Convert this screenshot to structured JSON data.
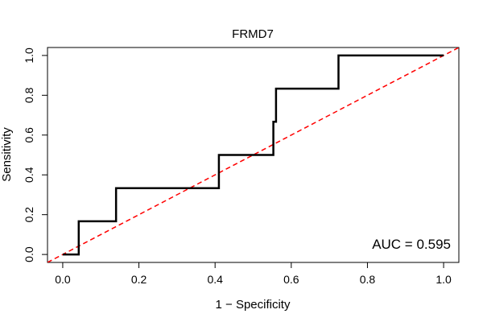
{
  "chart_data": {
    "type": "line",
    "title": "FRMD7",
    "xlabel": "1 − Specificity",
    "ylabel": "Sensitivity",
    "xlim": [
      -0.04,
      1.04
    ],
    "ylim": [
      -0.04,
      1.04
    ],
    "x_ticks": [
      0.0,
      0.2,
      0.4,
      0.6,
      0.8,
      1.0
    ],
    "x_tick_labels": [
      "0.0",
      "0.2",
      "0.4",
      "0.6",
      "0.8",
      "1.0"
    ],
    "y_ticks": [
      0.0,
      0.2,
      0.4,
      0.6,
      0.8,
      1.0
    ],
    "y_tick_labels": [
      "0.0",
      "0.2",
      "0.4",
      "0.6",
      "0.8",
      "1.0"
    ],
    "grid": false,
    "legend": "none",
    "series": [
      {
        "style": "step",
        "color": "#000000",
        "x": [
          0.0,
          0.042,
          0.042,
          0.14,
          0.14,
          0.41,
          0.41,
          0.553,
          0.553,
          0.56,
          0.56,
          0.724,
          0.724,
          1.0
        ],
        "y": [
          0.0,
          0.0,
          0.167,
          0.167,
          0.333,
          0.333,
          0.5,
          0.5,
          0.667,
          0.667,
          0.833,
          0.833,
          1.0,
          1.0
        ]
      },
      {
        "style": "dashed",
        "color": "#ff0000",
        "x": [
          -0.04,
          1.04
        ],
        "y": [
          -0.04,
          1.04
        ]
      }
    ],
    "annotations": [
      {
        "text": "AUC = 0.595",
        "position": "bottom-right"
      }
    ]
  }
}
